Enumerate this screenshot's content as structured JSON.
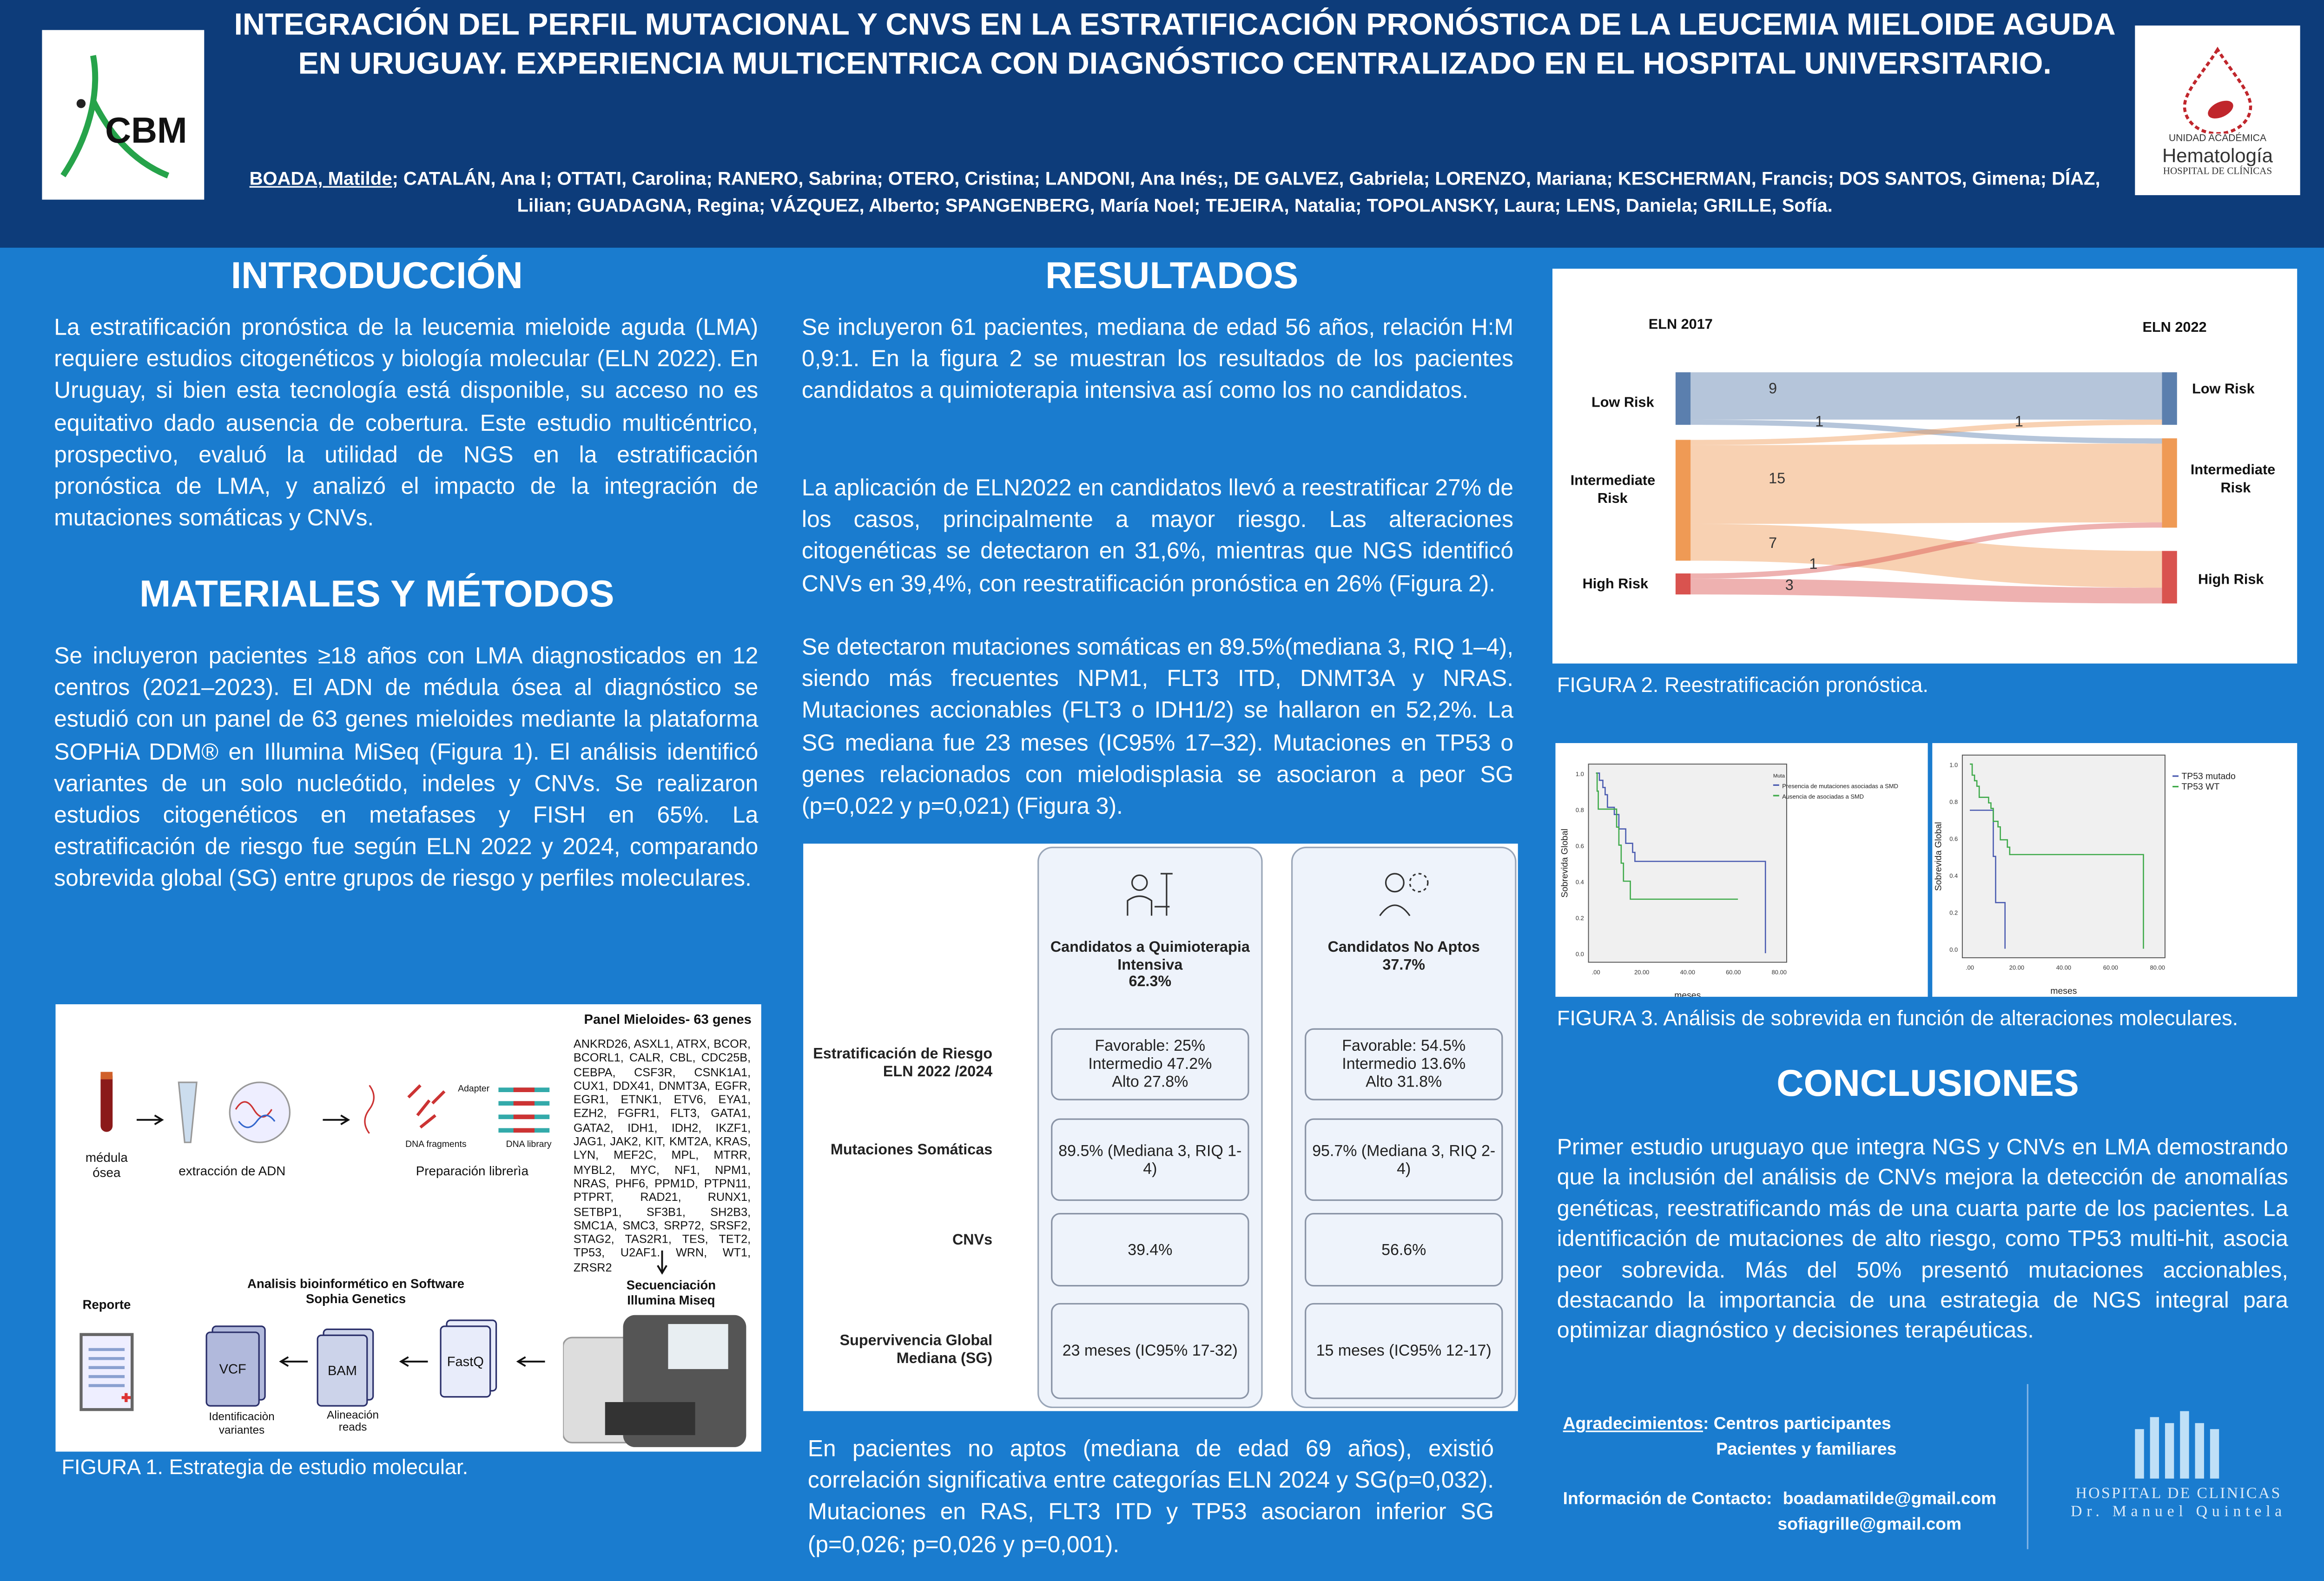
{
  "header": {
    "title": "INTEGRACIÓN DEL PERFIL MUTACIONAL Y CNVS  EN LA ESTRATIFICACIÓN PRONÓSTICA DE LA LEUCEMIA MIELOIDE AGUDA EN URUGUAY. EXPERIENCIA MULTICENTRICA CON DIAGNÓSTICO CENTRALIZADO EN EL HOSPITAL UNIVERSITARIO.",
    "first_author": "BOADA, Matilde",
    "authors_rest": "; CATALÁN, Ana I; OTTATI, Carolina; RANERO, Sabrina; OTERO, Cristina;  LANDONI, Ana Inés;, DE GALVEZ, Gabriela; LORENZO, Mariana; KESCHERMAN, Francis; DOS SANTOS, Gimena; DÍAZ, Lilian; GUADAGNA, Regina;  VÁZQUEZ, Alberto; SPANGENBERG, María Noel;  TEJEIRA, Natalia; TOPOLANSKY, Laura; LENS, Daniela; GRILLE, Sofía.",
    "logo_left": "CBM",
    "logo_right": {
      "line1": "UNIDAD ACADÉMICA",
      "line2": "Hematología",
      "line3": "HOSPITAL DE CLÍNICAS"
    }
  },
  "intro": {
    "heading": "INTRODUCCIÓN",
    "text": "La estratificación pronóstica de la leucemia mieloide aguda (LMA) requiere estudios citogenéticos y biología molecular (ELN 2022). En Uruguay, si bien esta tecnología está disponible, su acceso no es equitativo dado ausencia de cobertura. Este estudio multicéntrico, prospectivo, evaluó la utilidad de NGS en la estratificación pronóstica de LMA, y analizó el impacto de la integración de mutaciones somáticas y CNVs."
  },
  "methods": {
    "heading": "MATERIALES Y MÉTODOS",
    "text": "Se incluyeron pacientes ≥18 años con LMA diagnosticados en 12 centros (2021–2023). El ADN de médula ósea al diagnóstico se estudió con un panel de 63 genes mieloides mediante la plataforma SOPHiA DDM® en Illumina MiSeq (Figura 1). El análisis identificó variantes de un solo nucleótido, indeles y CNVs. Se realizaron estudios citogenéticos en metafases y FISH en 65%. La estratificación de riesgo fue según ELN 2022 y 2024, comparando sobrevida global (SG) entre grupos de riesgo y perfiles moleculares."
  },
  "figure1": {
    "panel_title": "Panel Mieloides- 63 genes",
    "genes": "ANKRD26, ASXL1, ATRX, BCOR, BCORL1, CALR, CBL, CDC25B, CEBPA, CSF3R, CSNK1A1, CUX1, DDX41, DNMT3A, EGFR, EGR1, ETNK1, ETV6, EYA1, EZH2, FGFR1, FLT3, GATA1, GATA2, IDH1, IDH2, IKZF1, JAG1, JAK2, KIT, KMT2A, KRAS, LYN, MEF2C, MPL, MTRR, MYBL2, MYC, NF1, NPM1, NRAS, PHF6, PPM1D, PTPN11, PTPRT, RAD21, RUNX1, SETBP1, SF3B1, SH2B3, SMC1A, SMC3, SRP72, SRSF2, STAG2, TAS2R1, TES, TET2, TP53, U2AF1. WRN, WT1, ZRSR2",
    "step_medula": "médula ósea",
    "step_extraccion": "extracción de ADN",
    "step_prep": "Preparación librerìa",
    "adapter": "Adapter",
    "dna_fragments": "DNA fragments",
    "dna_library": "DNA library",
    "sequencing": "Secuenciación Illumina Miseq",
    "bioinfo": "Analisis bioinformético en Software Sophia Genetics",
    "report": "Reporte",
    "fastq": "FastQ",
    "bam": "BAM",
    "vcf": "VCF",
    "bam_label": "Alineación reads",
    "vcf_label": "Identificaciòn variantes",
    "caption": "FIGURA 1.  Estrategia de estudio molecular."
  },
  "results": {
    "heading": "RESULTADOS",
    "p1": "Se incluyeron 61 pacientes, mediana de edad 56 años, relación H:M 0,9:1. En la figura 2 se muestran los resultados de los pacientes candidatos a quimioterapia intensiva así como los no candidatos.",
    "p2": "La aplicación de ELN2022 en candidatos llevó a reestratificar 27% de los casos, principalmente a mayor riesgo. Las alteraciones citogenéticas se detectaron en 31,6%, mientras que NGS identificó CNVs en 39,4%, con reestratificación pronóstica en 26% (Figura 2).",
    "p3": "Se detectaron mutaciones somáticas en 89.5%(mediana 3, RIQ 1–4), siendo más frecuentes NPM1, FLT3 ITD, DNMT3A y NRAS. Mutaciones accionables (FLT3 o IDH1/2) se hallaron en 52,2%. La SG mediana fue 23 meses (IC95% 17–32). Mutaciones en TP53 o genes relacionados con mielodisplasia se asociaron a peor SG (p=0,022 y p=0,021) (Figura 3).",
    "p4": "En pacientes no aptos (mediana de edad 69 años), existió correlación significativa entre categorías ELN 2024 y SG(p=0,032). Mutaciones en RAS, FLT3 ITD y TP53 asociaron inferior SG (p=0,026; p=0,026 y p=0,001)."
  },
  "table": {
    "columns": [
      {
        "label": "Candidatos a Quimioterapia Intensiva",
        "pct": "62.3%"
      },
      {
        "label": "Candidatos No Aptos",
        "pct": "37.7%"
      }
    ],
    "rows": [
      {
        "label": "Estratificación de Riesgo ELN 2022 /2024",
        "values": [
          "Favorable: 25%\nIntermedio 47.2%\nAlto  27.8%",
          "Favorable: 54.5%\nIntermedio 13.6%\nAlto 31.8%"
        ]
      },
      {
        "label": "Mutaciones Somáticas",
        "values": [
          "89.5% (Mediana 3, RIQ 1-4)",
          "95.7% (Mediana 3, RIQ 2-4)"
        ]
      },
      {
        "label": "CNVs",
        "values": [
          "39.4%",
          "56.6%"
        ]
      },
      {
        "label": "Supervivencia Global Mediana (SG)",
        "values": [
          "23 meses (IC95% 17-32)",
          "15 meses (IC95% 12-17)"
        ]
      }
    ]
  },
  "chart_data": [
    {
      "type": "sankey",
      "left_title": "ELN 2017",
      "right_title": "ELN 2022",
      "left_nodes": [
        "Low Risk",
        "Intermediate Risk",
        "High Risk"
      ],
      "right_nodes": [
        "Low Risk",
        "Intermediate Risk",
        "High Risk"
      ],
      "flows": [
        {
          "from": "Low Risk",
          "to": "Low Risk",
          "value": 9
        },
        {
          "from": "Low Risk",
          "to": "Intermediate Risk",
          "value": 1
        },
        {
          "from": "Intermediate Risk",
          "to": "Low Risk",
          "value": 1
        },
        {
          "from": "Intermediate Risk",
          "to": "Intermediate Risk",
          "value": 15
        },
        {
          "from": "Intermediate Risk",
          "to": "High Risk",
          "value": 7
        },
        {
          "from": "High Risk",
          "to": "Intermediate Risk",
          "value": 1
        },
        {
          "from": "High Risk",
          "to": "High Risk",
          "value": 3
        }
      ],
      "colors": {
        "Low Risk": "#5b7fae",
        "Intermediate Risk": "#ef9a55",
        "High Risk": "#d9534f"
      },
      "caption": "FIGURA 2.  Reestratificación pronóstica."
    },
    {
      "type": "line",
      "subtype": "kaplan-meier",
      "xlabel": "meses",
      "ylabel": "Sobrevida Global",
      "xlim": [
        0,
        80
      ],
      "ylim": [
        0,
        1
      ],
      "xticks": [
        ".00",
        "20.00",
        "40.00",
        "60.00",
        "80.00"
      ],
      "yticks": [
        "0.0",
        "0.2",
        "0.4",
        "0.6",
        "0.8",
        "1.0"
      ],
      "legend_title": "Muta",
      "series": [
        {
          "name": "Presencia de mutaciones asociadas a SMD",
          "color": "#4a5bb0",
          "steps": [
            [
              0,
              1.0
            ],
            [
              1.5,
              0.96
            ],
            [
              3,
              0.92
            ],
            [
              4,
              0.88
            ],
            [
              5,
              0.81
            ],
            [
              8,
              0.77
            ],
            [
              10,
              0.69
            ],
            [
              13,
              0.61
            ],
            [
              16,
              0.56
            ],
            [
              17,
              0.51
            ],
            [
              74,
              0
            ]
          ]
        },
        {
          "name": "Ausencia de asociadas a SMD",
          "color": "#3faa4a",
          "steps": [
            [
              0,
              1.0
            ],
            [
              0.5,
              0.9
            ],
            [
              1,
              0.8
            ],
            [
              9,
              0.7
            ],
            [
              10,
              0.6
            ],
            [
              11,
              0.5
            ],
            [
              12,
              0.4
            ],
            [
              15,
              0.3
            ],
            [
              62,
              0.3
            ]
          ]
        }
      ]
    },
    {
      "type": "line",
      "subtype": "kaplan-meier",
      "xlabel": "meses",
      "ylabel": "Sobrevida Global",
      "xlim": [
        0,
        80
      ],
      "ylim": [
        0,
        1
      ],
      "xticks": [
        ".00",
        "20.00",
        "40.00",
        "60.00",
        "80.00"
      ],
      "yticks": [
        "0.0",
        "0.2",
        "0.4",
        "0.6",
        "0.8",
        "1.0"
      ],
      "series": [
        {
          "name": "TP53 mutado",
          "color": "#4a5bb0",
          "steps": [
            [
              0,
              0.75
            ],
            [
              9,
              0.75
            ],
            [
              10,
              0.5
            ],
            [
              11,
              0.25
            ],
            [
              15,
              0
            ]
          ]
        },
        {
          "name": "TP53 WT",
          "color": "#3faa4a",
          "steps": [
            [
              0,
              1.0
            ],
            [
              1,
              0.94
            ],
            [
              2,
              0.91
            ],
            [
              3,
              0.88
            ],
            [
              4,
              0.82
            ],
            [
              8,
              0.79
            ],
            [
              9,
              0.76
            ],
            [
              10,
              0.69
            ],
            [
              12,
              0.66
            ],
            [
              13,
              0.59
            ],
            [
              16,
              0.55
            ],
            [
              17,
              0.51
            ],
            [
              74,
              0
            ]
          ]
        }
      ],
      "caption": "FIGURA 3.  Análisis de sobrevida en función de alteraciones moleculares."
    }
  ],
  "conclusions": {
    "heading": "CONCLUSIONES",
    "text": "Primer estudio uruguayo que integra NGS y CNVs en LMA demostrando que la inclusión del análisis de CNVs mejora la detección de anomalías genéticas, reestratificando más de una cuarta parte de los pacientes. La identificación de mutaciones de alto riesgo, como TP53 multi-hit, asocia peor sobrevida. Más del 50% presentó mutaciones accionables, destacando la importancia de una estrategia de NGS integral para optimizar diagnóstico y decisiones terapéuticas."
  },
  "footer": {
    "ack_label": "Agradecimientos",
    "ack1": ": Centros participantes",
    "ack2": "Pacientes y familiares",
    "contact_label": "Información de Contacto:",
    "email1": "boadamatilde@gmail.com",
    "email2": "sofiagrille@gmail.com",
    "hospital1": "HOSPITAL DE CLINICAS",
    "hospital2": "Dr. Manuel Quintela"
  }
}
